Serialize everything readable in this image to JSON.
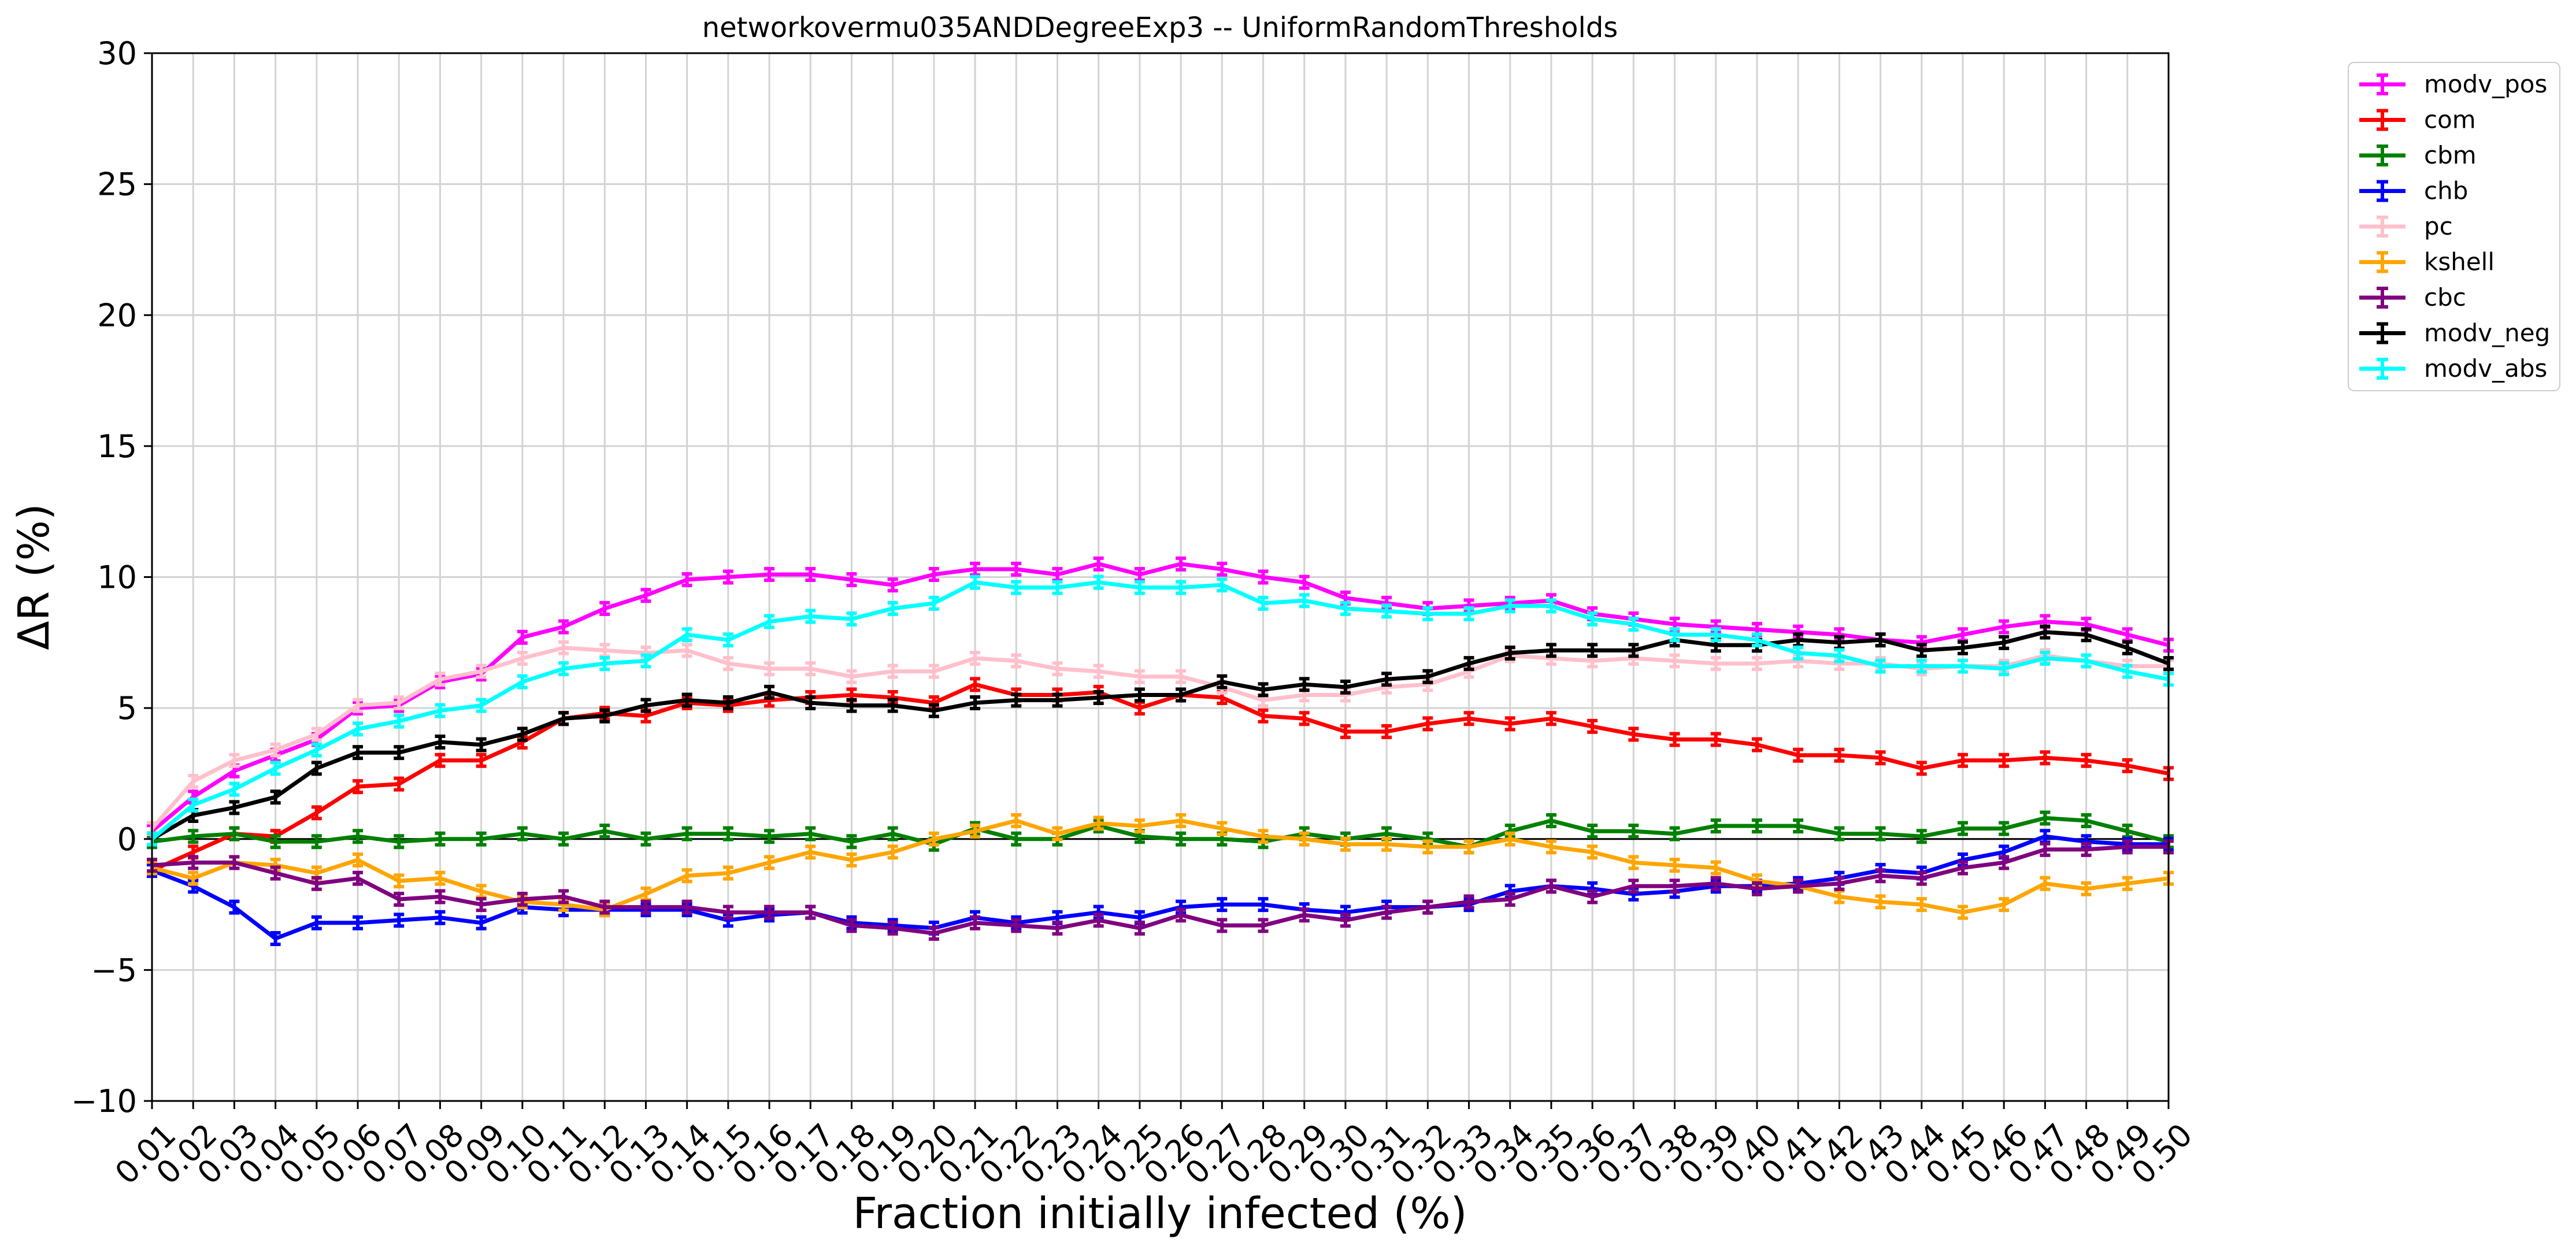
{
  "chart_data": {
    "type": "line",
    "title": "networkovermu035ANDDegreeExp3 -- UniformRandomThresholds",
    "xlabel": "Fraction initially infected (%)",
    "ylabel": "ΔR (%)",
    "ylim": [
      -10,
      30
    ],
    "yticks": [
      -10,
      -5,
      0,
      5,
      10,
      15,
      20,
      25,
      30
    ],
    "ytick_labels": [
      "−10",
      "−5",
      "0",
      "5",
      "10",
      "15",
      "20",
      "25",
      "30"
    ],
    "grid": true,
    "legend_position": "outside-top-right",
    "x": [
      "0.01",
      "0.02",
      "0.03",
      "0.04",
      "0.05",
      "0.06",
      "0.07",
      "0.08",
      "0.09",
      "0.10",
      "0.11",
      "0.12",
      "0.13",
      "0.14",
      "0.15",
      "0.16",
      "0.17",
      "0.18",
      "0.19",
      "0.20",
      "0.21",
      "0.22",
      "0.23",
      "0.24",
      "0.25",
      "0.26",
      "0.27",
      "0.28",
      "0.29",
      "0.30",
      "0.31",
      "0.32",
      "0.33",
      "0.34",
      "0.35",
      "0.36",
      "0.37",
      "0.38",
      "0.39",
      "0.40",
      "0.41",
      "0.42",
      "0.43",
      "0.44",
      "0.45",
      "0.46",
      "0.47",
      "0.48",
      "0.49",
      "0.50"
    ],
    "series": [
      {
        "name": "modv_pos",
        "color": "#ff00ff",
        "values": [
          0.3,
          1.6,
          2.6,
          3.2,
          3.8,
          5.0,
          5.1,
          6.0,
          6.3,
          7.7,
          8.1,
          8.8,
          9.3,
          9.9,
          10.0,
          10.1,
          10.1,
          9.9,
          9.7,
          10.1,
          10.3,
          10.3,
          10.1,
          10.5,
          10.1,
          10.5,
          10.3,
          10.0,
          9.8,
          9.2,
          9.0,
          8.8,
          8.9,
          9.0,
          9.1,
          8.6,
          8.4,
          8.2,
          8.1,
          8.0,
          7.9,
          7.8,
          7.6,
          7.5,
          7.8,
          8.1,
          8.3,
          8.2,
          7.8,
          7.4
        ]
      },
      {
        "name": "com",
        "color": "#ff0000",
        "values": [
          -1.2,
          -0.5,
          0.2,
          0.1,
          1.0,
          2.0,
          2.1,
          3.0,
          3.0,
          3.7,
          4.6,
          4.8,
          4.7,
          5.2,
          5.1,
          5.3,
          5.4,
          5.5,
          5.4,
          5.2,
          5.9,
          5.5,
          5.5,
          5.6,
          5.0,
          5.5,
          5.4,
          4.7,
          4.6,
          4.1,
          4.1,
          4.4,
          4.6,
          4.4,
          4.6,
          4.3,
          4.0,
          3.8,
          3.8,
          3.6,
          3.2,
          3.2,
          3.1,
          2.7,
          3.0,
          3.0,
          3.1,
          3.0,
          2.8,
          2.5
        ]
      },
      {
        "name": "cbm",
        "color": "#008000",
        "values": [
          -0.1,
          0.1,
          0.2,
          -0.1,
          -0.1,
          0.1,
          -0.1,
          0.0,
          0.0,
          0.2,
          0.0,
          0.3,
          0.0,
          0.2,
          0.2,
          0.1,
          0.2,
          -0.1,
          0.2,
          -0.2,
          0.4,
          0.0,
          0.0,
          0.5,
          0.1,
          0.0,
          0.0,
          -0.1,
          0.2,
          0.0,
          0.2,
          0.0,
          -0.3,
          0.3,
          0.7,
          0.3,
          0.3,
          0.2,
          0.5,
          0.5,
          0.5,
          0.2,
          0.2,
          0.1,
          0.4,
          0.4,
          0.8,
          0.7,
          0.3,
          -0.1
        ]
      },
      {
        "name": "chb",
        "color": "#0000ff",
        "values": [
          -1.2,
          -1.8,
          -2.6,
          -3.8,
          -3.2,
          -3.2,
          -3.1,
          -3.0,
          -3.2,
          -2.6,
          -2.7,
          -2.7,
          -2.7,
          -2.7,
          -3.1,
          -2.9,
          -2.8,
          -3.2,
          -3.3,
          -3.4,
          -3.0,
          -3.2,
          -3.0,
          -2.8,
          -3.0,
          -2.6,
          -2.5,
          -2.5,
          -2.7,
          -2.8,
          -2.6,
          -2.6,
          -2.5,
          -2.0,
          -1.8,
          -1.9,
          -2.1,
          -2.0,
          -1.8,
          -1.8,
          -1.7,
          -1.5,
          -1.2,
          -1.3,
          -0.8,
          -0.5,
          0.1,
          -0.1,
          -0.2,
          -0.2
        ]
      },
      {
        "name": "pc",
        "color": "#ffc0cb",
        "values": [
          0.4,
          2.2,
          3.0,
          3.4,
          4.0,
          5.1,
          5.2,
          6.1,
          6.4,
          6.9,
          7.3,
          7.2,
          7.1,
          7.2,
          6.7,
          6.5,
          6.5,
          6.2,
          6.4,
          6.4,
          6.9,
          6.8,
          6.5,
          6.4,
          6.2,
          6.2,
          5.8,
          5.3,
          5.5,
          5.5,
          5.8,
          5.9,
          6.4,
          7.0,
          6.9,
          6.8,
          6.9,
          6.8,
          6.7,
          6.7,
          6.8,
          6.7,
          6.7,
          6.5,
          6.6,
          6.6,
          7.0,
          6.8,
          6.6,
          6.6
        ]
      },
      {
        "name": "kshell",
        "color": "#ffa500",
        "values": [
          -1.1,
          -1.5,
          -0.9,
          -1.0,
          -1.3,
          -0.8,
          -1.6,
          -1.5,
          -2.0,
          -2.4,
          -2.5,
          -2.7,
          -2.1,
          -1.4,
          -1.3,
          -0.9,
          -0.5,
          -0.8,
          -0.5,
          0.0,
          0.3,
          0.7,
          0.2,
          0.6,
          0.5,
          0.7,
          0.4,
          0.1,
          0.0,
          -0.2,
          -0.2,
          -0.3,
          -0.3,
          0.0,
          -0.3,
          -0.5,
          -0.9,
          -1.0,
          -1.1,
          -1.6,
          -1.8,
          -2.2,
          -2.4,
          -2.5,
          -2.8,
          -2.5,
          -1.7,
          -1.9,
          -1.7,
          -1.5
        ]
      },
      {
        "name": "cbc",
        "color": "#800080",
        "values": [
          -1.0,
          -0.9,
          -0.9,
          -1.3,
          -1.7,
          -1.5,
          -2.3,
          -2.2,
          -2.5,
          -2.3,
          -2.2,
          -2.6,
          -2.6,
          -2.6,
          -2.8,
          -2.8,
          -2.8,
          -3.3,
          -3.4,
          -3.6,
          -3.2,
          -3.3,
          -3.4,
          -3.1,
          -3.4,
          -2.9,
          -3.3,
          -3.3,
          -2.9,
          -3.1,
          -2.8,
          -2.6,
          -2.4,
          -2.3,
          -1.8,
          -2.2,
          -1.8,
          -1.8,
          -1.7,
          -1.9,
          -1.8,
          -1.7,
          -1.4,
          -1.5,
          -1.1,
          -0.9,
          -0.4,
          -0.4,
          -0.3,
          -0.3
        ]
      },
      {
        "name": "modv_neg",
        "color": "#000000",
        "values": [
          0.0,
          0.9,
          1.2,
          1.6,
          2.7,
          3.3,
          3.3,
          3.7,
          3.6,
          4.0,
          4.6,
          4.7,
          5.1,
          5.3,
          5.2,
          5.6,
          5.2,
          5.1,
          5.1,
          4.9,
          5.2,
          5.3,
          5.3,
          5.4,
          5.5,
          5.5,
          6.0,
          5.7,
          5.9,
          5.8,
          6.1,
          6.2,
          6.7,
          7.1,
          7.2,
          7.2,
          7.2,
          7.6,
          7.4,
          7.4,
          7.6,
          7.5,
          7.6,
          7.2,
          7.3,
          7.5,
          7.9,
          7.8,
          7.3,
          6.7
        ]
      },
      {
        "name": "modv_abs",
        "color": "#00ffff",
        "values": [
          0.0,
          1.3,
          1.9,
          2.7,
          3.4,
          4.2,
          4.5,
          4.9,
          5.1,
          6.0,
          6.5,
          6.7,
          6.8,
          7.8,
          7.6,
          8.3,
          8.5,
          8.4,
          8.8,
          9.0,
          9.8,
          9.6,
          9.6,
          9.8,
          9.6,
          9.6,
          9.7,
          9.0,
          9.1,
          8.8,
          8.7,
          8.6,
          8.6,
          8.9,
          8.9,
          8.4,
          8.2,
          7.8,
          7.8,
          7.6,
          7.1,
          7.0,
          6.6,
          6.6,
          6.6,
          6.5,
          6.9,
          6.8,
          6.4,
          6.1
        ]
      }
    ]
  }
}
